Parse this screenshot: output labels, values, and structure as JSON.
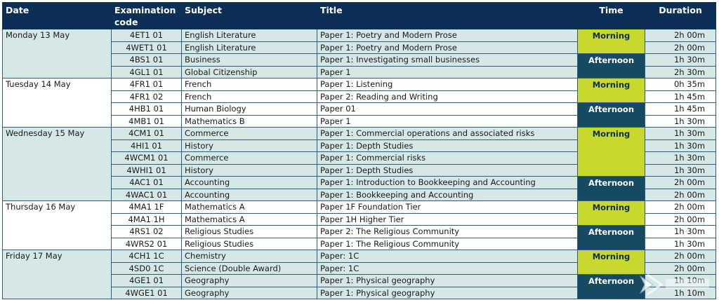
{
  "headers": {
    "date": "Date",
    "code": "Examination code",
    "subject": "Subject",
    "title": "Title",
    "time": "Time",
    "duration": "Duration"
  },
  "colors": {
    "header_bg": "#0d2f55",
    "row_shade": "#d5e8e6",
    "morning": "#c9d82c",
    "afternoon": "#154a62"
  },
  "days": [
    {
      "date": "Monday 13 May",
      "sessions": [
        {
          "time": "Morning",
          "rows": [
            {
              "code": "4ET1 01",
              "subject": "English Literature",
              "title": "Paper 1: Poetry and Modern Prose",
              "duration": "2h 00m"
            },
            {
              "code": "4WET1 01",
              "subject": "English Literature",
              "title": "Paper 1: Poetry and Modern Prose",
              "duration": "2h 00m"
            }
          ]
        },
        {
          "time": "Afternoon",
          "rows": [
            {
              "code": "4BS1 01",
              "subject": "Business",
              "title": "Paper 1: Investigating small businesses",
              "duration": "1h 30m"
            },
            {
              "code": "4GL1 01",
              "subject": "Global Citizenship",
              "title": "Paper 1",
              "duration": "2h 30m"
            }
          ]
        }
      ]
    },
    {
      "date": "Tuesday 14 May",
      "sessions": [
        {
          "time": "Morning",
          "rows": [
            {
              "code": "4FR1 01",
              "subject": "French",
              "title": "Paper 1: Listening",
              "duration": "0h 35m"
            },
            {
              "code": "4FR1 02",
              "subject": "French",
              "title": "Paper 2: Reading and Writing",
              "duration": "1h 45m"
            }
          ]
        },
        {
          "time": "Afternoon",
          "rows": [
            {
              "code": "4HB1 01",
              "subject": "Human Biology",
              "title": "Paper 01",
              "duration": "1h 45m"
            },
            {
              "code": "4MB1 01",
              "subject": "Mathematics B",
              "title": "Paper 1",
              "duration": "1h 30m"
            }
          ]
        }
      ]
    },
    {
      "date": "Wednesday 15 May",
      "sessions": [
        {
          "time": "Morning",
          "rows": [
            {
              "code": "4CM1 01",
              "subject": "Commerce",
              "title": "Paper 1: Commercial operations and associated risks",
              "duration": "1h 30m"
            },
            {
              "code": "4HI1 01",
              "subject": "History",
              "title": "Paper 1: Depth Studies",
              "duration": "1h 30m"
            },
            {
              "code": "4WCM1 01",
              "subject": "Commerce",
              "title": "Paper 1: Commercial risks",
              "duration": "1h 30m"
            },
            {
              "code": "4WHI1 01",
              "subject": "History",
              "title": "Paper 1: Depth Studies",
              "duration": "1h 30m"
            }
          ]
        },
        {
          "time": "Afternoon",
          "rows": [
            {
              "code": "4AC1 01",
              "subject": "Accounting",
              "title": "Paper 1: Introduction to Bookkeeping and Accounting",
              "duration": "2h 00m"
            },
            {
              "code": "4WAC1 01",
              "subject": "Accounting",
              "title": "Paper 1: Bookkeeping and Accounting",
              "duration": "2h 00m"
            }
          ]
        }
      ]
    },
    {
      "date": "Thursday 16 May",
      "sessions": [
        {
          "time": "Morning",
          "rows": [
            {
              "code": "4MA1 1F",
              "subject": "Mathematics A",
              "title": "Paper 1F Foundation Tier",
              "duration": "2h 00m"
            },
            {
              "code": "4MA1 1H",
              "subject": "Mathematics A",
              "title": "Paper 1H Higher Tier",
              "duration": "2h 00m"
            }
          ]
        },
        {
          "time": "Afternoon",
          "rows": [
            {
              "code": "4RS1 02",
              "subject": "Religious Studies",
              "title": "Paper 2: The Religious Community",
              "duration": "1h 30m"
            },
            {
              "code": "4WRS2 01",
              "subject": "Religious Studies",
              "title": "Paper 1: The Religious Community",
              "duration": "1h 30m"
            }
          ]
        }
      ]
    },
    {
      "date": "Friday 17 May",
      "sessions": [
        {
          "time": "Morning",
          "rows": [
            {
              "code": "4CH1 1C",
              "subject": "Chemistry",
              "title": "Paper: 1C",
              "duration": "2h 00m"
            },
            {
              "code": "4SD0 1C",
              "subject": "Science (Double Award)",
              "title": "Paper: 1C",
              "duration": "2h 00m"
            }
          ]
        },
        {
          "time": "Afternoon",
          "rows": [
            {
              "code": "4GE1 01",
              "subject": "Geography",
              "title": "Paper 1: Physical geography",
              "duration": "1h 10m"
            },
            {
              "code": "4WGE1 01",
              "subject": "Geography",
              "title": "Paper 1: Physical geography",
              "duration": "1h 10m"
            }
          ]
        }
      ]
    }
  ]
}
